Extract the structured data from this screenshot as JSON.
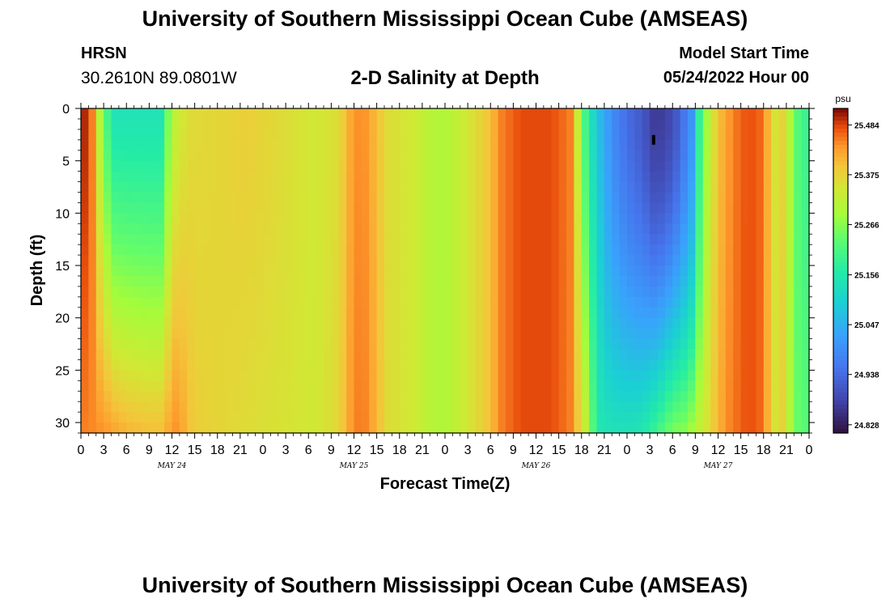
{
  "header": {
    "title": "University of Southern Mississippi Ocean Cube (AMSEAS)",
    "station": "HRSN",
    "coords": "30.2610N  89.0801W",
    "plot_title": "2-D Salinity at Depth",
    "model_start_label": "Model Start Time",
    "model_start_value": "05/24/2022 Hour 00"
  },
  "footer": {
    "title": "University of Southern Mississippi Ocean Cube (AMSEAS)"
  },
  "chart_data": {
    "type": "heatmap",
    "title": "2-D Salinity at Depth",
    "xlabel": "Forecast Time(Z)",
    "ylabel": "Depth (ft)",
    "x_range_hours": [
      0,
      96
    ],
    "y_range_ft": [
      0,
      31
    ],
    "x_tick_labels": [
      "0",
      "3",
      "6",
      "9",
      "12",
      "15",
      "18",
      "21",
      "0",
      "3",
      "6",
      "9",
      "12",
      "15",
      "18",
      "21",
      "0",
      "3",
      "6",
      "9",
      "12",
      "15",
      "18",
      "21",
      "0",
      "3",
      "6",
      "9",
      "12",
      "15",
      "18",
      "21",
      "0"
    ],
    "y_ticks": [
      0,
      5,
      10,
      15,
      20,
      25,
      30
    ],
    "day_labels": [
      {
        "label": "MAY 24",
        "hour": 12
      },
      {
        "label": "MAY 25",
        "hour": 36
      },
      {
        "label": "MAY 26",
        "hour": 60
      },
      {
        "label": "MAY 27",
        "hour": 84
      }
    ],
    "colorbar": {
      "unit": "psu",
      "min": 24.81,
      "max": 25.52,
      "tick_labels": [
        "25.484",
        "25.375",
        "25.266",
        "25.156",
        "25.047",
        "24.938",
        "24.828"
      ]
    },
    "surface_profile_psu": [
      [
        0,
        25.5
      ],
      [
        0.5,
        25.5
      ],
      [
        1.5,
        25.45
      ],
      [
        2.5,
        25.3
      ],
      [
        3.5,
        25.2
      ],
      [
        4.5,
        25.14
      ],
      [
        10.5,
        25.14
      ],
      [
        11.5,
        25.25
      ],
      [
        12.5,
        25.32
      ],
      [
        14,
        25.36
      ],
      [
        22,
        25.38
      ],
      [
        27,
        25.36
      ],
      [
        31,
        25.34
      ],
      [
        34,
        25.36
      ],
      [
        35.5,
        25.42
      ],
      [
        37,
        25.45
      ],
      [
        39,
        25.4
      ],
      [
        40.5,
        25.36
      ],
      [
        44,
        25.34
      ],
      [
        46,
        25.31
      ],
      [
        48,
        25.3
      ],
      [
        50,
        25.33
      ],
      [
        52,
        25.36
      ],
      [
        54,
        25.4
      ],
      [
        55.5,
        25.45
      ],
      [
        58,
        25.48
      ],
      [
        62,
        25.48
      ],
      [
        64.5,
        25.45
      ],
      [
        65.5,
        25.33
      ],
      [
        66.5,
        25.2
      ],
      [
        68,
        25.08
      ],
      [
        70,
        24.99
      ],
      [
        72,
        24.94
      ],
      [
        74,
        24.91
      ],
      [
        75.5,
        24.87
      ],
      [
        77,
        24.87
      ],
      [
        78.5,
        24.91
      ],
      [
        80.5,
        25.0
      ],
      [
        81.5,
        25.18
      ],
      [
        82.5,
        25.28
      ],
      [
        83.5,
        25.36
      ],
      [
        84.5,
        25.41
      ],
      [
        86,
        25.45
      ],
      [
        88,
        25.48
      ],
      [
        90,
        25.46
      ],
      [
        91,
        25.37
      ],
      [
        92,
        25.33
      ],
      [
        92.6,
        25.38
      ],
      [
        93.5,
        25.3
      ],
      [
        94.5,
        25.22
      ],
      [
        96,
        25.18
      ]
    ],
    "bottom_profile_psu": [
      [
        0,
        25.45
      ],
      [
        3,
        25.44
      ],
      [
        6,
        25.41
      ],
      [
        9,
        25.4
      ],
      [
        11,
        25.4
      ],
      [
        11.5,
        25.42
      ],
      [
        12.5,
        25.44
      ],
      [
        13.5,
        25.42
      ],
      [
        15,
        25.38
      ],
      [
        22,
        25.36
      ],
      [
        27,
        25.35
      ],
      [
        31,
        25.34
      ],
      [
        34,
        25.37
      ],
      [
        35.5,
        25.43
      ],
      [
        37,
        25.46
      ],
      [
        39,
        25.41
      ],
      [
        40.5,
        25.36
      ],
      [
        44,
        25.34
      ],
      [
        46,
        25.31
      ],
      [
        48,
        25.3
      ],
      [
        50,
        25.33
      ],
      [
        52,
        25.36
      ],
      [
        54,
        25.4
      ],
      [
        55.5,
        25.45
      ],
      [
        58,
        25.48
      ],
      [
        62,
        25.48
      ],
      [
        64.5,
        25.45
      ],
      [
        66.5,
        25.33
      ],
      [
        67.5,
        25.22
      ],
      [
        68.5,
        25.15
      ],
      [
        70,
        25.14
      ],
      [
        72,
        25.14
      ],
      [
        74,
        25.15
      ],
      [
        76,
        25.2
      ],
      [
        78,
        25.26
      ],
      [
        80,
        25.27
      ],
      [
        81,
        25.31
      ],
      [
        82.5,
        25.35
      ],
      [
        83.5,
        25.39
      ],
      [
        85,
        25.44
      ],
      [
        88,
        25.48
      ],
      [
        90,
        25.46
      ],
      [
        91,
        25.37
      ],
      [
        92,
        25.33
      ],
      [
        92.6,
        25.38
      ],
      [
        93.5,
        25.3
      ],
      [
        94.5,
        25.24
      ],
      [
        96,
        25.22
      ]
    ],
    "annotations": [
      {
        "type": "marker",
        "label": "min",
        "hour": 75.5,
        "depth_ft": 3
      }
    ]
  }
}
